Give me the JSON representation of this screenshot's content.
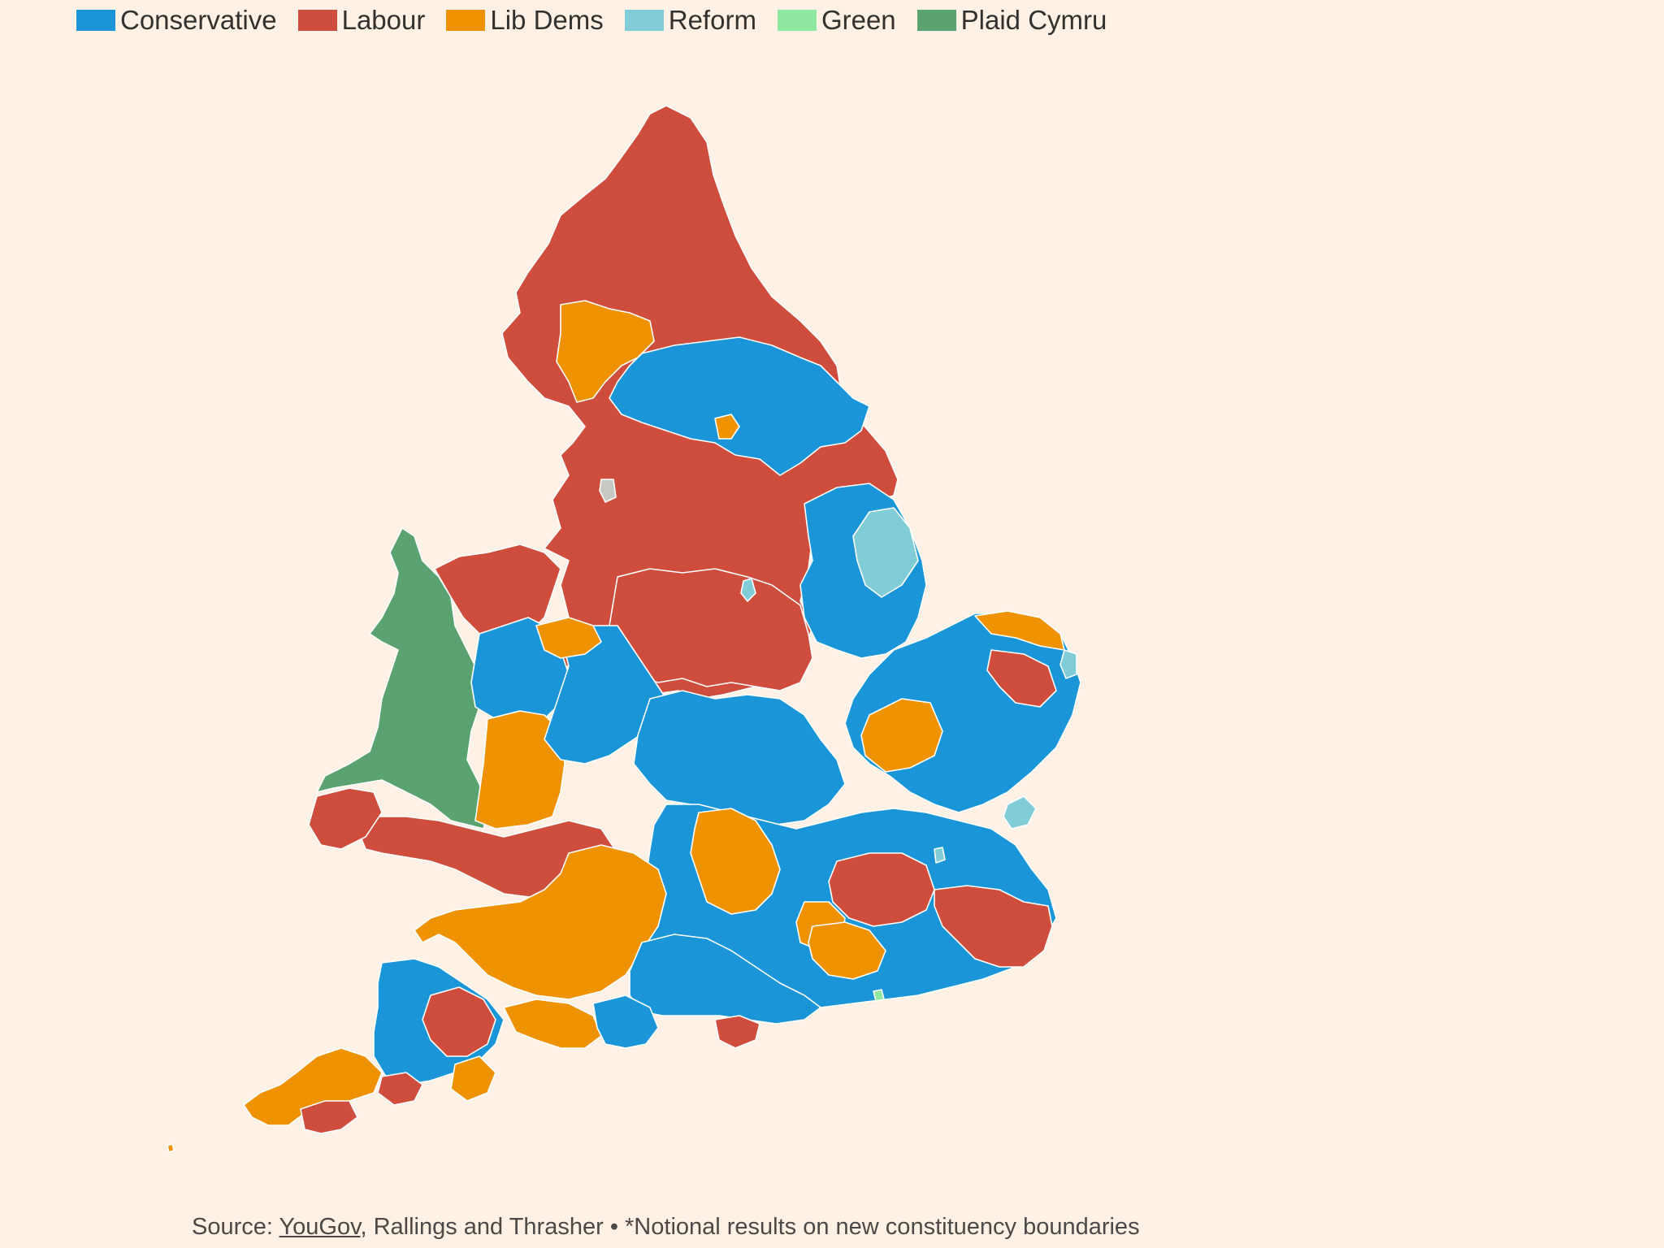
{
  "legend": [
    {
      "label": "Conservative",
      "color": "#1a96d8"
    },
    {
      "label": "Labour",
      "color": "#cf4d3d"
    },
    {
      "label": "Lib Dems",
      "color": "#ef9200"
    },
    {
      "label": "Reform",
      "color": "#80cdd8"
    },
    {
      "label": "Green",
      "color": "#8fe8a0"
    },
    {
      "label": "Plaid Cymru",
      "color": "#5aa371"
    }
  ],
  "source": {
    "prefix": "Source: ",
    "link_text": "YouGov",
    "suffix": ", Rallings and Thrasher • *Notional results on new constituency boundaries"
  },
  "colors": {
    "background": "#fff1e5",
    "conservative": "#1a96d8",
    "labour": "#cf4d3d",
    "libdem": "#ef9200",
    "reform": "#80cdd8",
    "green": "#8fe8a0",
    "plaid": "#5aa371",
    "other": "#c9c9c4"
  }
}
